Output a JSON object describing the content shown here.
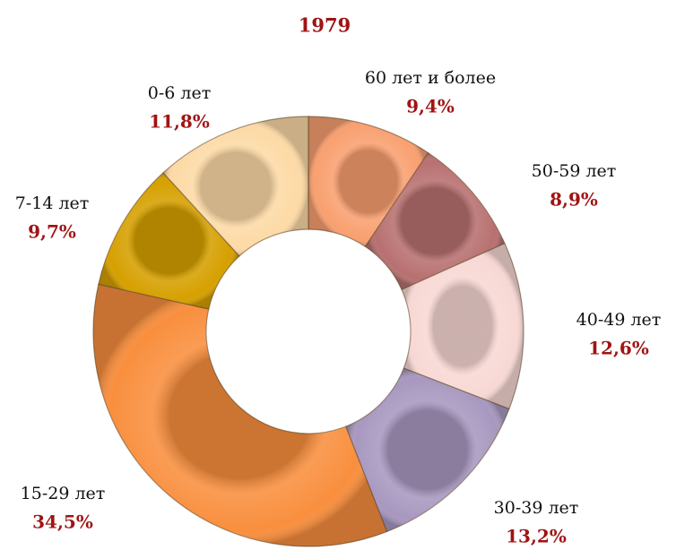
{
  "chart_data": {
    "type": "donut",
    "title": "1979",
    "categories": [
      "60 лет и более",
      "50-59 лет",
      "40-49 лет",
      "30-39 лет",
      "15-29 лет",
      "7-14 лет",
      "0-6 лет"
    ],
    "values": [
      9.4,
      8.9,
      12.6,
      13.2,
      34.5,
      9.7,
      11.8
    ],
    "value_labels": [
      "9,4%",
      "8,9%",
      "12,6%",
      "13,2%",
      "34,5%",
      "9,7%",
      "11,8%"
    ],
    "colors": [
      "#f9a070",
      "#b87070",
      "#f8d8d4",
      "#a898c0",
      "#f98f3e",
      "#d6a000",
      "#fddaa6"
    ]
  }
}
